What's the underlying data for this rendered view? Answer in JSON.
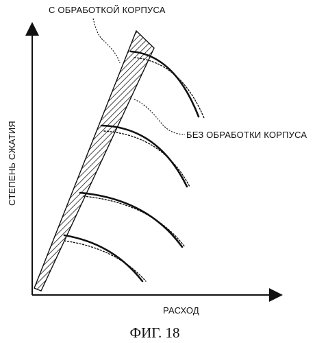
{
  "figure": {
    "label_with_treatment": "С ОБРАБОТКОЙ КОРПУСА",
    "label_without_treatment": "БЕЗ ОБРАБОТКИ КОРПУСА",
    "y_axis_label": "СТЕПЕНЬ СЖАТИЯ",
    "x_axis_label": "РАСХОД",
    "caption": "ФИГ. 18"
  },
  "colors": {
    "ink": "#111111",
    "background": "#ffffff"
  }
}
